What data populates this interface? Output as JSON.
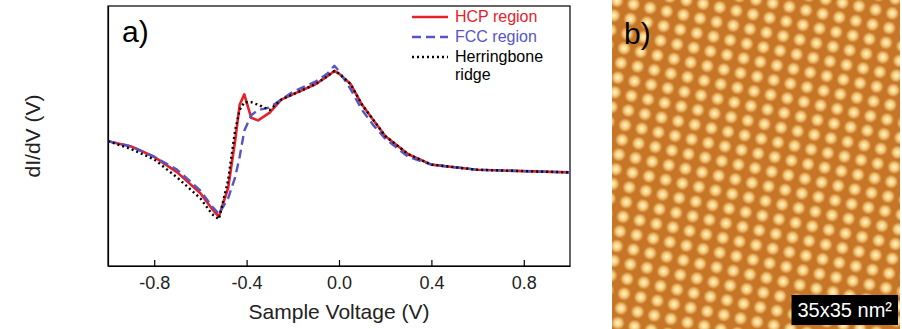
{
  "chart_data": {
    "type": "line",
    "title": "a)",
    "x_label": "Sample Voltage (V)",
    "y_label": "dI/dV (V)",
    "x": [
      -1.0,
      -0.9,
      -0.8,
      -0.7,
      -0.6,
      -0.55,
      -0.52,
      -0.48,
      -0.45,
      -0.43,
      -0.41,
      -0.38,
      -0.35,
      -0.3,
      -0.25,
      -0.2,
      -0.15,
      -0.1,
      -0.05,
      -0.02,
      0.0,
      0.05,
      0.1,
      0.15,
      0.2,
      0.3,
      0.4,
      0.5,
      0.6,
      0.8,
      1.0
    ],
    "series": [
      {
        "name": "HCP region",
        "color": "#e8202a",
        "line_style": "solid",
        "values": [
          0.48,
          0.46,
          0.42,
          0.36,
          0.28,
          0.22,
          0.19,
          0.3,
          0.48,
          0.62,
          0.66,
          0.57,
          0.56,
          0.59,
          0.64,
          0.66,
          0.68,
          0.7,
          0.73,
          0.75,
          0.74,
          0.7,
          0.62,
          0.56,
          0.5,
          0.43,
          0.39,
          0.38,
          0.37,
          0.365,
          0.36
        ]
      },
      {
        "name": "FCC region",
        "color": "#5555c8",
        "line_style": "dashed",
        "values": [
          0.48,
          0.46,
          0.42,
          0.37,
          0.29,
          0.23,
          0.2,
          0.26,
          0.34,
          0.42,
          0.52,
          0.58,
          0.6,
          0.61,
          0.64,
          0.67,
          0.69,
          0.71,
          0.74,
          0.77,
          0.75,
          0.68,
          0.6,
          0.54,
          0.49,
          0.42,
          0.39,
          0.38,
          0.37,
          0.365,
          0.36
        ]
      },
      {
        "name": "Herringbone ridge",
        "color": "#000000",
        "line_style": "dotted",
        "values": [
          0.48,
          0.45,
          0.41,
          0.34,
          0.26,
          0.2,
          0.18,
          0.33,
          0.52,
          0.6,
          0.63,
          0.63,
          0.62,
          0.6,
          0.64,
          0.66,
          0.68,
          0.7,
          0.73,
          0.75,
          0.74,
          0.7,
          0.62,
          0.56,
          0.5,
          0.43,
          0.39,
          0.38,
          0.37,
          0.365,
          0.36
        ]
      }
    ],
    "xlim": [
      -1.0,
      1.0
    ],
    "xticks": [
      -0.8,
      -0.4,
      {
        "value": 0,
        "label": "0.0"
      },
      0.4,
      0.8
    ],
    "ylim": [
      0,
      1
    ],
    "tick_labels": "x",
    "legend": "upper right"
  },
  "image": {
    "label": "b)",
    "scale_label": "35x35 nm²"
  }
}
